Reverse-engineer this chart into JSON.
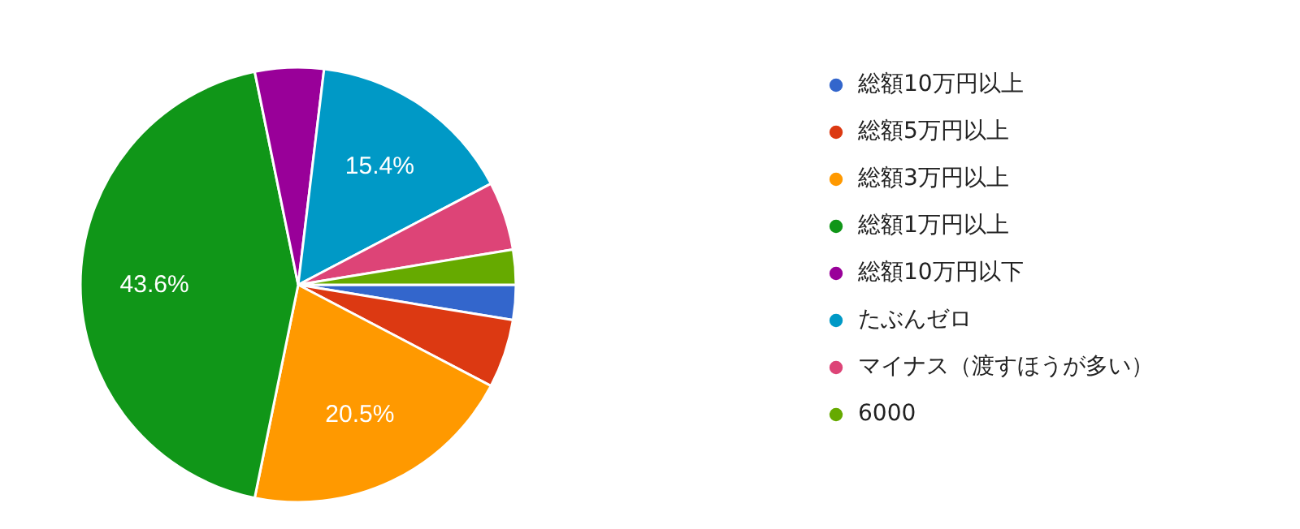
{
  "chart_data": {
    "type": "pie",
    "categories": [
      "総額10万円以上",
      "総額5万円以上",
      "総額3万円以上",
      "総額1万円以上",
      "総額10万円以下",
      "たぶんゼロ",
      "マイナス（渡すほうが多い）",
      "6000"
    ],
    "values": [
      2.6,
      5.1,
      20.5,
      43.6,
      5.1,
      15.4,
      5.1,
      2.6
    ],
    "colors": [
      "#3366cc",
      "#dc3912",
      "#ff9900",
      "#109618",
      "#990099",
      "#0099c6",
      "#dd4477",
      "#66aa00"
    ],
    "value_labels": [
      null,
      null,
      "20.5%",
      "43.6%",
      null,
      "15.4%",
      null,
      null
    ],
    "legend": "right"
  }
}
